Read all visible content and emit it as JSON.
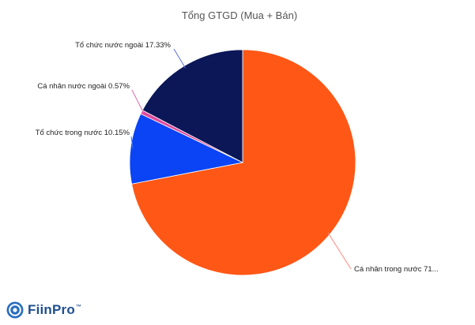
{
  "chart_data": {
    "type": "pie",
    "title": "Tổng GTGD (Mua + Bán)",
    "start_angle_deg": 0,
    "direction": "clockwise",
    "slices": [
      {
        "label": "Cá nhân trong nước 71...",
        "value": 71.95,
        "color": "#ff5716",
        "line_color": "#ff8a80"
      },
      {
        "label": "Tổ chức trong nước 10.15%",
        "value": 10.15,
        "color": "#0a44f5",
        "line_color": "#3a74f5"
      },
      {
        "label": "Cá nhân nước ngoài 0.57%",
        "value": 0.57,
        "color": "#e04a9c",
        "line_color": "#d86cb2"
      },
      {
        "label": "Tổ chức nước ngoài 17.33%",
        "value": 17.33,
        "color": "#0c1758",
        "line_color": "#5b6fd8"
      }
    ]
  },
  "brand": {
    "name": "FiinPro",
    "trademark": "™",
    "icon": "fiinpro-logo-icon"
  }
}
